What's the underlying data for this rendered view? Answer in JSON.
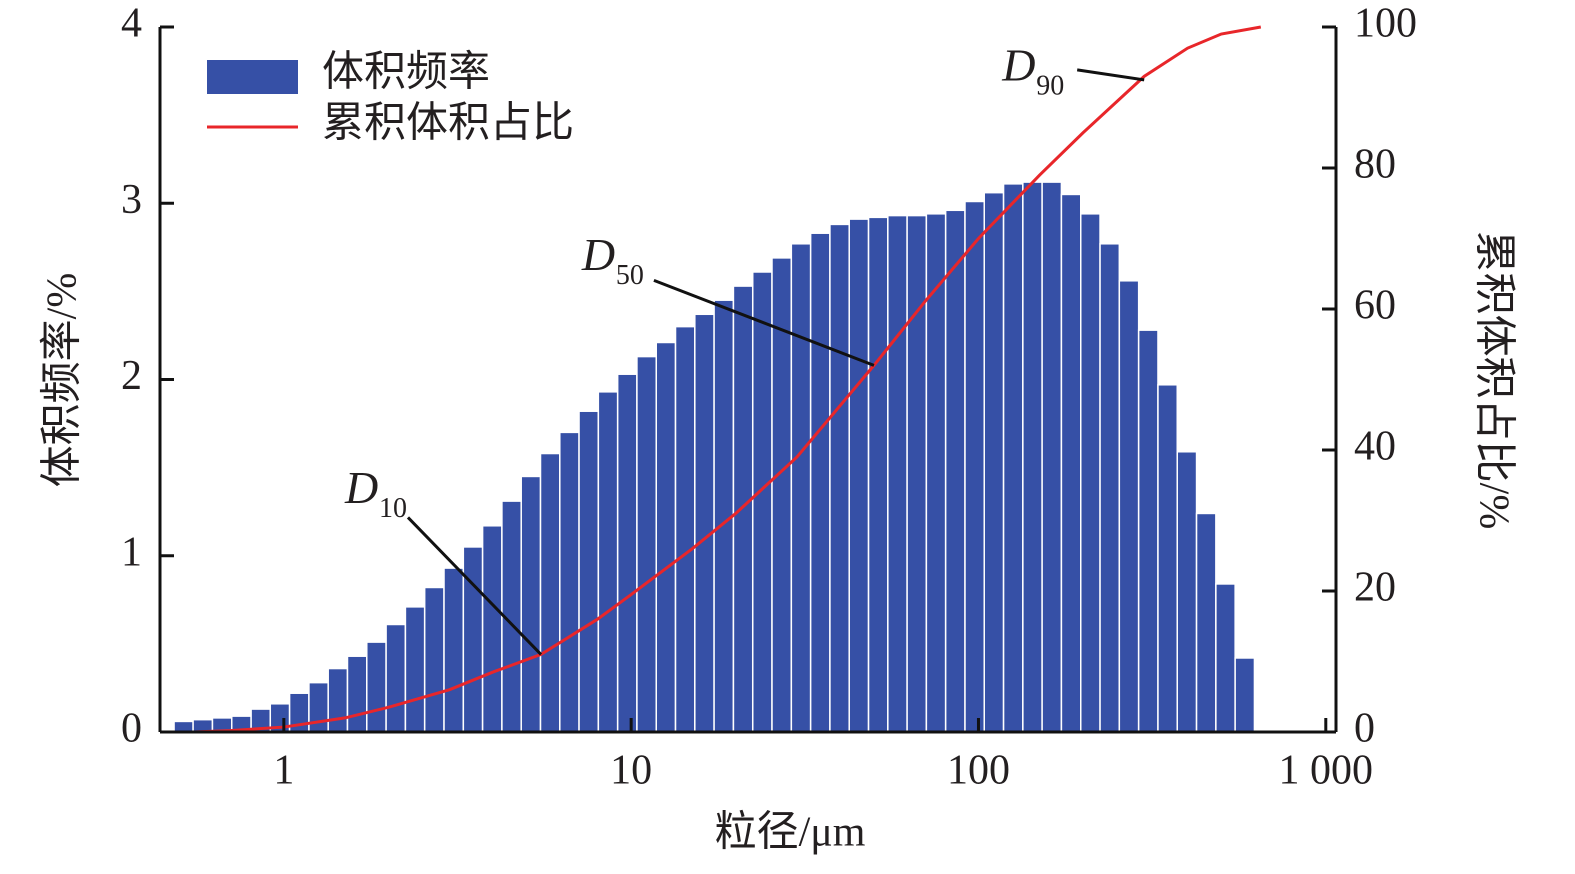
{
  "chart_data": {
    "type": "histogram",
    "xlabel": "粒径/μm",
    "ylabel": "体积频率/%",
    "y2label": "累积体积占比/%",
    "xscale": "log",
    "xlim": [
      0.44,
      1070
    ],
    "xticks": [
      1,
      10,
      100,
      {
        "value": 1000,
        "label": "1 000"
      }
    ],
    "ylim": [
      0,
      4
    ],
    "yticks": [
      0,
      1,
      2,
      3,
      4
    ],
    "y2lim": [
      0,
      100
    ],
    "y2ticks": [
      0,
      20,
      40,
      60,
      80,
      100
    ],
    "legend": "upper left",
    "histogram": {
      "name": "体积频率",
      "color": "#3650a6",
      "bins": [
        0.483,
        0.548,
        0.623,
        0.708,
        0.805,
        0.914,
        1.039,
        1.181,
        1.342,
        1.525,
        1.733,
        1.97,
        2.239,
        2.544,
        2.892,
        3.287,
        3.735,
        4.245,
        4.825,
        5.483,
        6.231,
        7.079,
        8.045,
        9.145,
        10.39,
        11.81,
        13.42,
        15.25,
        17.33,
        19.7,
        22.39,
        25.44,
        28.92,
        32.87,
        37.35,
        42.45,
        48.25,
        54.83,
        62.31,
        70.79,
        80.45,
        91.45,
        103.9,
        118.1,
        134.2,
        152.5,
        173.3,
        197.0,
        223.9,
        254.4,
        289.2,
        328.7,
        373.5,
        424.5,
        482.5,
        548.3,
        623.1
      ],
      "counts": [
        0.06,
        0.07,
        0.08,
        0.09,
        0.13,
        0.16,
        0.22,
        0.28,
        0.36,
        0.43,
        0.51,
        0.61,
        0.71,
        0.82,
        0.93,
        1.05,
        1.17,
        1.31,
        1.45,
        1.58,
        1.7,
        1.82,
        1.93,
        2.03,
        2.13,
        2.21,
        2.3,
        2.37,
        2.45,
        2.53,
        2.61,
        2.69,
        2.77,
        2.83,
        2.88,
        2.91,
        2.92,
        2.93,
        2.93,
        2.94,
        2.96,
        3.01,
        3.06,
        3.11,
        3.12,
        3.12,
        3.05,
        2.94,
        2.77,
        2.56,
        2.28,
        1.97,
        1.59,
        1.24,
        0.84,
        0.42
      ]
    },
    "line": {
      "name": "累积体积占比",
      "color": "#e8262a",
      "axis": "y2",
      "x": [
        0.55,
        0.7,
        1,
        1.5,
        2,
        3,
        4,
        5.5,
        8,
        10,
        15,
        20,
        30,
        50,
        70,
        100,
        150,
        200,
        300,
        400,
        500,
        650
      ],
      "values": [
        0,
        0.2,
        0.7,
        2,
        3.5,
        6,
        8.5,
        11,
        16,
        19.5,
        26,
        31,
        39,
        52,
        61,
        70,
        79,
        85,
        93,
        97,
        99,
        100
      ]
    },
    "annotations": [
      {
        "label": "D",
        "subscript": "10",
        "x": 5.5,
        "y": 11
      },
      {
        "label": "D",
        "subscript": "50",
        "x": 50,
        "y": 52
      },
      {
        "label": "D",
        "subscript": "90",
        "x": 300,
        "y": 92.5
      }
    ]
  }
}
